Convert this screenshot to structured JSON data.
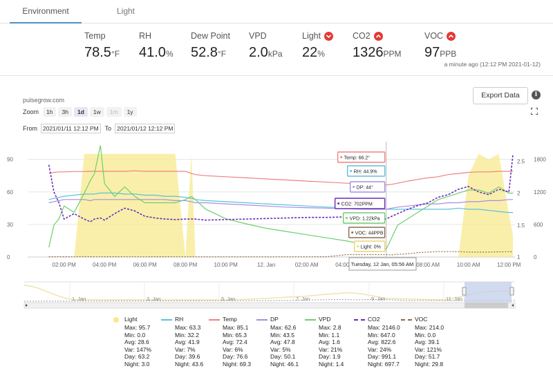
{
  "tabs": [
    {
      "label": "Environment"
    },
    {
      "label": "Light"
    }
  ],
  "metrics": [
    {
      "label": "Temp",
      "value": "78.5",
      "unit": "°F",
      "alert": false
    },
    {
      "label": "RH",
      "value": "41.0",
      "unit": "%",
      "alert": false
    },
    {
      "label": "Dew Point",
      "value": "52.8",
      "unit": "°F",
      "alert": false
    },
    {
      "label": "VPD",
      "value": "2.0",
      "unit": "kPa",
      "alert": false
    },
    {
      "label": "Light",
      "value": "22",
      "unit": "%",
      "alert": true,
      "alert_icon": "chevron-down-icon"
    },
    {
      "label": "CO2",
      "value": "1326",
      "unit": "PPM",
      "alert": true,
      "alert_icon": "chevron-up-icon"
    },
    {
      "label": "VOC",
      "value": "97",
      "unit": "PPB",
      "alert": true,
      "alert_icon": "chevron-up-icon"
    }
  ],
  "timestamp": "a minute ago (12:12 PM 2021-01-12)",
  "export_label": "Export Data",
  "info_icon": "i",
  "source": "pulsegrow.com",
  "zoom": {
    "label": "Zoom",
    "options": [
      "1h",
      "3h",
      "1d",
      "1w",
      "1m",
      "1y"
    ],
    "selected": "1d",
    "disabled": [
      "1m"
    ]
  },
  "range": {
    "from_label": "From",
    "from": "2021/01/11 12:12 PM",
    "to_label": "To",
    "to": "2021/01/12 12:12 PM"
  },
  "colors": {
    "temp": "#f08080",
    "rh": "#5bc0de",
    "dp": "#a48fe0",
    "vpd": "#6ccf6c",
    "co2": "#6a2ab8",
    "voc": "#8b6a4a",
    "light": "#f7e98e",
    "accent": "#4a90c8",
    "alert": "#e53935"
  },
  "chart_data": {
    "type": "line",
    "x_ticks": [
      "02:00 PM",
      "04:00 PM",
      "06:00 PM",
      "08:00 PM",
      "10:00 PM",
      "12. Jan",
      "02:00 AM",
      "04:00 AM",
      "06:00 AM",
      "08:00 AM",
      "10:00 AM",
      "12:00 PM"
    ],
    "y_left_ticks": [
      0,
      30,
      60,
      90
    ],
    "y_right1_ticks": [
      1,
      1.5,
      2,
      2.5
    ],
    "y_right2_ticks": [
      0,
      600,
      1200,
      1800
    ],
    "x_hours": [
      13.25,
      13.5,
      13.75,
      14,
      14.5,
      15,
      15.3,
      15.5,
      15.8,
      16,
      16.5,
      17,
      17.5,
      18,
      18.5,
      19,
      19.5,
      20,
      20.3,
      20.5,
      21,
      22,
      23,
      24,
      25,
      26,
      27,
      28,
      28.5,
      29,
      29.5,
      29.93,
      30.2,
      30.5,
      31,
      31.5,
      32,
      32.5,
      33,
      33.5,
      34,
      34.5,
      35,
      35.5,
      36,
      36.2
    ],
    "series": [
      {
        "name": "Light",
        "axis": "left",
        "color": "#f7e98e",
        "type": "area",
        "values": [
          0,
          0,
          0,
          0,
          0,
          95,
          95,
          95,
          95,
          95,
          95,
          95,
          95,
          95,
          95,
          95,
          95,
          0,
          95,
          0,
          0,
          0,
          0,
          0,
          0,
          0,
          0,
          0,
          0,
          0,
          0,
          0,
          0,
          0,
          0,
          0,
          0,
          0,
          0,
          0,
          75,
          95,
          90,
          95,
          40,
          20
        ]
      },
      {
        "name": "Temp",
        "axis": "left",
        "color": "#f08080",
        "type": "line",
        "values": [
          77,
          78,
          78.5,
          78.5,
          78.8,
          78.8,
          79,
          79,
          79,
          79,
          79,
          79,
          79.5,
          79,
          79,
          79,
          79,
          79,
          77,
          76,
          75,
          74,
          73,
          72,
          71,
          70,
          69,
          68,
          67.5,
          67,
          66.2,
          66.5,
          67,
          68,
          70,
          71.5,
          73,
          74,
          76,
          77,
          78,
          78.5,
          78.5,
          79,
          79,
          79
        ]
      },
      {
        "name": "RH",
        "axis": "left",
        "color": "#5bc0de",
        "type": "line",
        "values": [
          53,
          54,
          55,
          56,
          57,
          58,
          58,
          58,
          59,
          59,
          59,
          58,
          58,
          57,
          57,
          56,
          56,
          55,
          54,
          53,
          52,
          51,
          50,
          49,
          48,
          47,
          46,
          45.5,
          45,
          44.9,
          44.9,
          44,
          44,
          44,
          44,
          44,
          44,
          44,
          44,
          45,
          44,
          44,
          43,
          42,
          41,
          41
        ]
      },
      {
        "name": "DP",
        "axis": "left",
        "color": "#a48fe0",
        "type": "line",
        "values": [
          50,
          51,
          52,
          53,
          53,
          53,
          52,
          53,
          53,
          53,
          53,
          53,
          53,
          53,
          53,
          53,
          52,
          52,
          51,
          50,
          50,
          49,
          48,
          47,
          46,
          45.5,
          45,
          44.5,
          44.2,
          44,
          44,
          44,
          45,
          46,
          47,
          48,
          49,
          49,
          50,
          50,
          51,
          51,
          52,
          52,
          53,
          53
        ]
      },
      {
        "name": "VPD",
        "axis": "right1",
        "color": "#6ccf6c",
        "type": "line",
        "values": [
          1.15,
          1.5,
          1.6,
          1.8,
          1.7,
          2,
          2.2,
          2.3,
          2.75,
          2.15,
          1.95,
          2.1,
          1.95,
          1.85,
          1.85,
          1.85,
          1.85,
          1.9,
          1.95,
          1.9,
          1.75,
          1.6,
          1.52,
          1.45,
          1.4,
          1.35,
          1.3,
          1.25,
          1.22,
          1.22,
          1.22,
          1.12,
          1.3,
          1.5,
          1.6,
          1.7,
          1.8,
          1.9,
          1.95,
          2,
          2.05,
          2.05,
          2,
          2.1,
          2,
          2
        ]
      },
      {
        "name": "CO2",
        "axis": "right2",
        "color": "#6a2ab8",
        "type": "dashed",
        "values": [
          1700,
          1200,
          1000,
          700,
          800,
          700,
          650,
          700,
          720,
          680,
          800,
          900,
          850,
          750,
          720,
          700,
          690,
          700,
          700,
          700,
          680,
          690,
          700,
          710,
          720,
          730,
          730,
          740,
          740,
          702,
          702,
          702,
          750,
          800,
          880,
          950,
          1000,
          1100,
          1150,
          1250,
          1300,
          1200,
          1150,
          1250,
          1200,
          1900
        ]
      },
      {
        "name": "VOC",
        "axis": "right2",
        "color": "#8b6a4a",
        "type": "dotted",
        "values": [
          5,
          5,
          6,
          5,
          4,
          6,
          5,
          4,
          4,
          5,
          5,
          4,
          4,
          4,
          5,
          5,
          4,
          4,
          4,
          4,
          4,
          4,
          4,
          4,
          4,
          4,
          5,
          44,
          44,
          44,
          44,
          45,
          40,
          50,
          60,
          80,
          90,
          100,
          100,
          100,
          90,
          90,
          90,
          95,
          97,
          97
        ]
      }
    ],
    "tooltip": {
      "title": "Tuesday, 12 Jan, 05:56 AM",
      "items": [
        "Temp: 66.2°",
        "RH: 44.9%",
        "DP: 44°",
        "CO2: 702PPM",
        "VPD: 1.22kPa",
        "VOC: 44PPB",
        "Light: 0%"
      ]
    },
    "navigator_labels": [
      "1. Jan",
      "3. Jan",
      "5. Jan",
      "7. Jan",
      "9. Jan",
      "11. Jan"
    ],
    "legend": [
      {
        "name": "Light",
        "color": "#f7e98e",
        "sym": "dot",
        "stats": [
          "Max: 95.7",
          "Min: 0.0",
          "Avg: 28.6",
          "Var: 147%",
          "Day: 63.2",
          "Night: 3.0"
        ]
      },
      {
        "name": "RH",
        "color": "#5bc0de",
        "sym": "line",
        "stats": [
          "Max: 63.3",
          "Min: 32.2",
          "Avg: 41.9",
          "Var: 7%",
          "Day: 39.6",
          "Night: 43.6"
        ]
      },
      {
        "name": "Temp",
        "color": "#f08080",
        "sym": "line",
        "stats": [
          "Max: 85.1",
          "Min: 65.3",
          "Avg: 72.4",
          "Var: 6%",
          "Day: 76.6",
          "Night: 69.3"
        ]
      },
      {
        "name": "DP",
        "color": "#a48fe0",
        "sym": "line",
        "stats": [
          "Max: 62.6",
          "Min: 43.5",
          "Avg: 47.8",
          "Var: 5%",
          "Day: 50.1",
          "Night: 46.1"
        ]
      },
      {
        "name": "VPD",
        "color": "#6ccf6c",
        "sym": "line",
        "stats": [
          "Max: 2.8",
          "Min: 1.1",
          "Avg: 1.6",
          "Var: 21%",
          "Day: 1.9",
          "Night: 1.4"
        ]
      },
      {
        "name": "CO2",
        "color": "#6a2ab8",
        "sym": "dash",
        "stats": [
          "Max: 2146.0",
          "Min: 647.0",
          "Avg: 822.6",
          "Var: 24%",
          "Day: 991.1",
          "Night: 697.7"
        ]
      },
      {
        "name": "VOC",
        "color": "#8b6a4a",
        "sym": "dash",
        "stats": [
          "Max: 214.0",
          "Min: 0.0",
          "Avg: 39.1",
          "Var: 121%",
          "Day: 51.7",
          "Night: 29.8"
        ]
      }
    ]
  }
}
